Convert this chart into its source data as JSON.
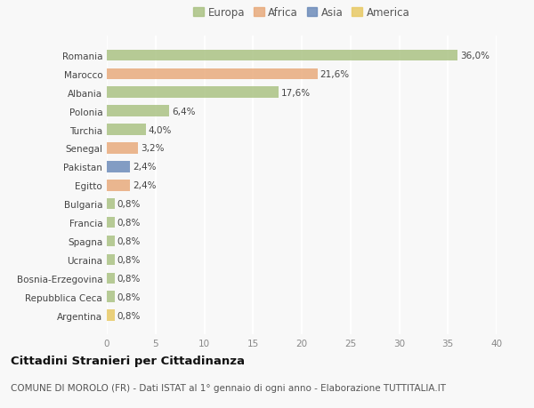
{
  "countries": [
    "Romania",
    "Marocco",
    "Albania",
    "Polonia",
    "Turchia",
    "Senegal",
    "Pakistan",
    "Egitto",
    "Bulgaria",
    "Francia",
    "Spagna",
    "Ucraina",
    "Bosnia-Erzegovina",
    "Repubblica Ceca",
    "Argentina"
  ],
  "values": [
    36.0,
    21.6,
    17.6,
    6.4,
    4.0,
    3.2,
    2.4,
    2.4,
    0.8,
    0.8,
    0.8,
    0.8,
    0.8,
    0.8,
    0.8
  ],
  "labels": [
    "36,0%",
    "21,6%",
    "17,6%",
    "6,4%",
    "4,0%",
    "3,2%",
    "2,4%",
    "2,4%",
    "0,8%",
    "0,8%",
    "0,8%",
    "0,8%",
    "0,8%",
    "0,8%",
    "0,8%"
  ],
  "colors": [
    "#a8c080",
    "#e8a878",
    "#a8c080",
    "#a8c080",
    "#a8c080",
    "#e8a878",
    "#6888b8",
    "#e8a878",
    "#a8c080",
    "#a8c080",
    "#a8c080",
    "#a8c080",
    "#a8c080",
    "#a8c080",
    "#e8c860"
  ],
  "legend_labels": [
    "Europa",
    "Africa",
    "Asia",
    "America"
  ],
  "legend_colors": [
    "#a8c080",
    "#e8a878",
    "#6888b8",
    "#e8c860"
  ],
  "title": "Cittadini Stranieri per Cittadinanza",
  "subtitle": "COMUNE DI MOROLO (FR) - Dati ISTAT al 1° gennaio di ogni anno - Elaborazione TUTTITALIA.IT",
  "xlim": [
    0,
    40
  ],
  "xticks": [
    0,
    5,
    10,
    15,
    20,
    25,
    30,
    35,
    40
  ],
  "background_color": "#f8f8f8",
  "grid_color": "#ffffff",
  "bar_alpha": 0.82,
  "title_fontsize": 9.5,
  "subtitle_fontsize": 7.5,
  "tick_fontsize": 7.5,
  "label_fontsize": 7.5,
  "legend_fontsize": 8.5
}
